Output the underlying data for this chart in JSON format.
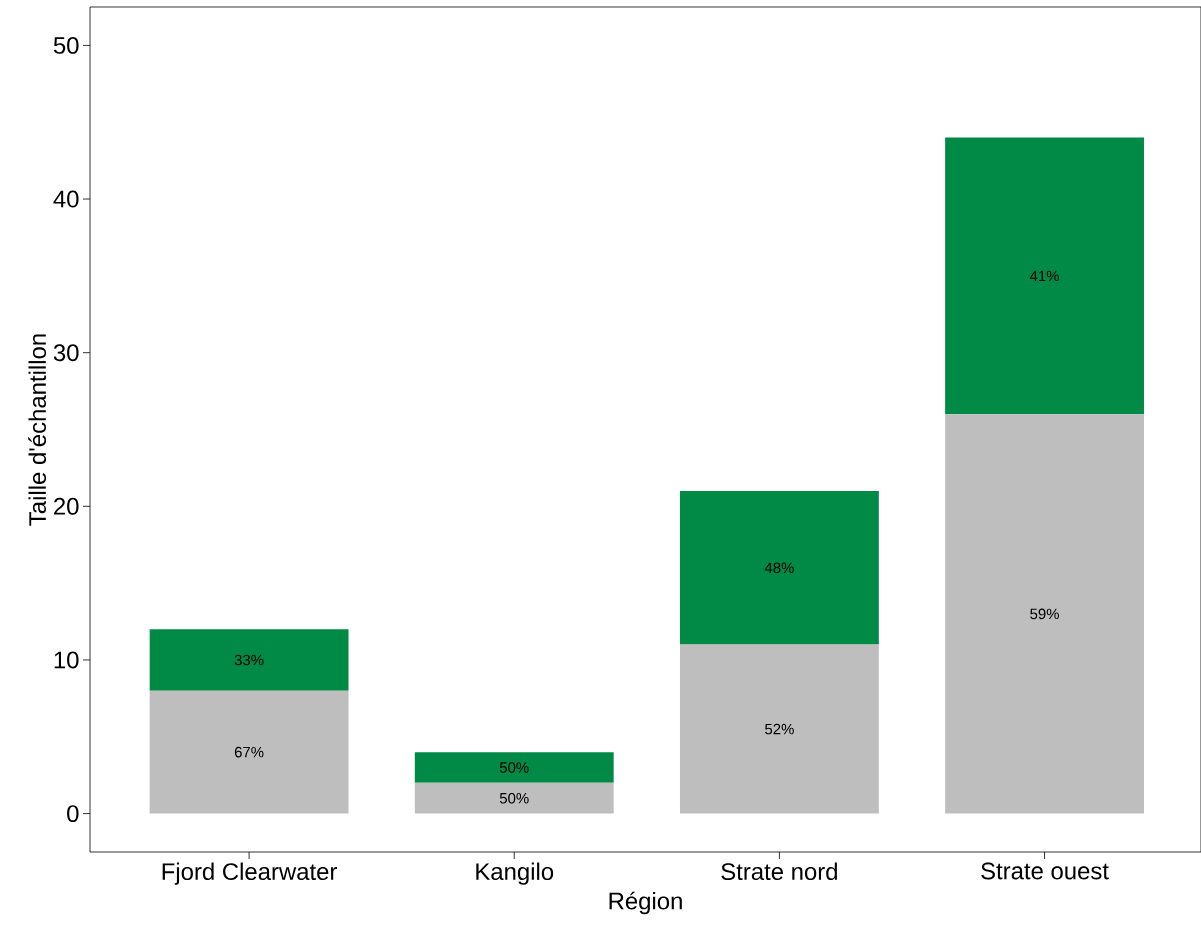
{
  "chart_data": {
    "type": "bar",
    "stacked": true,
    "xlabel": "Région",
    "ylabel": "Taille d'échantillon",
    "categories": [
      "Fjord Clearwater",
      "Kangilo",
      "Strate nord",
      "Strate ouest"
    ],
    "series": [
      {
        "color": "#bebebe",
        "values": [
          8,
          2,
          11,
          26
        ]
      },
      {
        "color": "#008a45",
        "values": [
          4,
          2,
          10,
          18
        ]
      }
    ],
    "annotations": [
      "67%",
      "50%",
      "52%",
      "59%",
      "33%",
      "50%",
      "48%",
      "41%"
    ],
    "ylim": [
      -2.5,
      52.5
    ],
    "yticks": [
      0,
      10,
      20,
      30,
      40,
      50
    ],
    "grid": false,
    "legend": false
  }
}
